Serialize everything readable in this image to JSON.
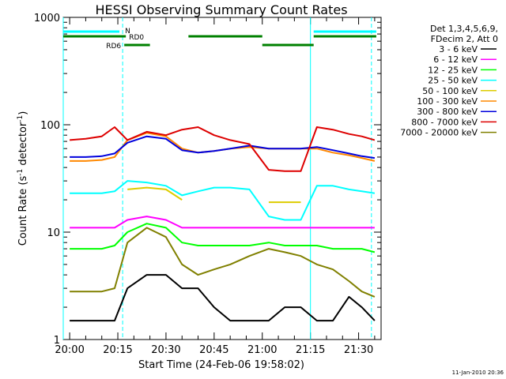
{
  "chart_data": {
    "type": "line",
    "title": "HESSI Observing Summary Count Rates",
    "xlabel": "Start Time (24-Feb-06 19:58:02)",
    "ylabel_main": "Count Rate (s",
    "ylabel_sup1": "-1",
    "ylabel_mid": " detector",
    "ylabel_sup2": "-1",
    "ylabel_end": ")",
    "yscale": "log",
    "ylim": [
      1,
      1000
    ],
    "xlim_minutes": [
      -2,
      97
    ],
    "yticks": [
      "1",
      "10",
      "100",
      "1000"
    ],
    "xticks": [
      {
        "label": "20:00",
        "min": 0
      },
      {
        "label": "20:15",
        "min": 15
      },
      {
        "label": "20:30",
        "min": 30
      },
      {
        "label": "20:45",
        "min": 45
      },
      {
        "label": "21:00",
        "min": 60
      },
      {
        "label": "21:15",
        "min": 75
      },
      {
        "label": "21:30",
        "min": 90
      }
    ],
    "legend_header": [
      "Det 1,3,4,5,6,9,",
      "FDecim 2, Att 0"
    ],
    "legend_position": "right",
    "series": [
      {
        "name": "3 - 6 keV",
        "color": "#000000",
        "values": [
          1.5,
          1.5,
          1.5,
          1.5,
          3,
          4,
          4,
          3,
          3,
          2,
          1.5,
          1.5,
          1.5,
          2,
          2,
          1.5,
          1.5,
          2.5,
          2,
          1.5
        ]
      },
      {
        "name": "6 - 12 keV",
        "color": "#ff00ff",
        "values": [
          11,
          11,
          11,
          11,
          13,
          14,
          13,
          11,
          11,
          11,
          11,
          11,
          11,
          11,
          11,
          11,
          11,
          11,
          11,
          11
        ]
      },
      {
        "name": "12 - 25 keV",
        "color": "#00ff00",
        "values": [
          7,
          7,
          7,
          7.5,
          10,
          12,
          11,
          8,
          7.5,
          7.5,
          7.5,
          7.5,
          8,
          7.5,
          7.5,
          7.5,
          7,
          7,
          7,
          6.5
        ]
      },
      {
        "name": "25 - 50 keV",
        "color": "#00ffff",
        "values": [
          23,
          23,
          23,
          24,
          30,
          29,
          27,
          22,
          24,
          26,
          26,
          25,
          14,
          13,
          13,
          27,
          27,
          25,
          24,
          23
        ]
      },
      {
        "name": "50 - 100 keV",
        "color": "#ddcc00",
        "values": [
          null,
          null,
          null,
          null,
          25,
          26,
          25,
          20,
          null,
          null,
          null,
          null,
          19,
          19,
          19,
          null,
          null,
          null,
          null,
          null
        ]
      },
      {
        "name": "100 - 300 keV",
        "color": "#ff8800",
        "values": [
          46,
          46,
          47,
          50,
          72,
          84,
          78,
          60,
          55,
          57,
          60,
          62,
          60,
          60,
          60,
          60,
          55,
          52,
          49,
          46
        ]
      },
      {
        "name": "300 - 800 keV",
        "color": "#0000dd",
        "values": [
          50,
          50,
          51,
          54,
          68,
          78,
          74,
          58,
          55,
          57,
          60,
          64,
          60,
          60,
          60,
          62,
          58,
          54,
          51,
          49
        ]
      },
      {
        "name": "800 - 7000 keV",
        "color": "#dd0000",
        "values": [
          72,
          74,
          78,
          95,
          72,
          86,
          80,
          90,
          95,
          80,
          72,
          66,
          38,
          37,
          37,
          95,
          90,
          82,
          78,
          72
        ]
      },
      {
        "name": "7000 - 20000 keV",
        "color": "#808000",
        "values": [
          2.8,
          2.8,
          2.8,
          3,
          8,
          11,
          9,
          5,
          4,
          4.5,
          5,
          6,
          7,
          6.5,
          6,
          5,
          4.5,
          3.5,
          2.8,
          2.5
        ]
      }
    ],
    "x_minutes": [
      0,
      5,
      10,
      14,
      18,
      24,
      30,
      35,
      40,
      45,
      50,
      56,
      62,
      67,
      72,
      77,
      82,
      87,
      91,
      95
    ],
    "status_flags": [
      {
        "label": "N",
        "color": "#00ffff"
      },
      {
        "label": "RD0",
        "color": "#008000"
      },
      {
        "label": "RD6",
        "color": "#008000"
      }
    ],
    "timestamp": "11-Jan-2010 20:36"
  }
}
